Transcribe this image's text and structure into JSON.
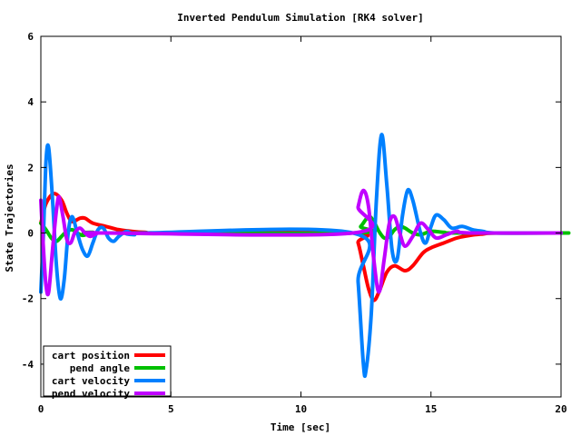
{
  "chart_data": {
    "type": "line",
    "title": "Inverted Pendulum Simulation [RK4 solver]",
    "xlabel": "Time [sec]",
    "ylabel": "State Trajectories",
    "xlim": [
      0,
      20
    ],
    "ylim": [
      -5,
      6
    ],
    "xticks": [
      0,
      5,
      10,
      15,
      20
    ],
    "yticks": [
      -4,
      -2,
      0,
      2,
      4,
      6
    ],
    "grid": false,
    "legend_position": "bottom-left",
    "series": [
      {
        "name": "cart position",
        "color": "#ff0000",
        "points": [
          [
            0,
            0.3
          ],
          [
            0.2,
            0.9
          ],
          [
            0.5,
            1.2
          ],
          [
            0.8,
            1.0
          ],
          [
            1.0,
            0.6
          ],
          [
            1.2,
            0.35
          ],
          [
            1.5,
            0.45
          ],
          [
            1.7,
            0.45
          ],
          [
            2.0,
            0.3
          ],
          [
            2.5,
            0.2
          ],
          [
            3.0,
            0.1
          ],
          [
            3.5,
            0.05
          ],
          [
            4.0,
            0.02
          ],
          [
            5,
            0
          ],
          [
            12.0,
            0
          ],
          [
            12.2,
            -0.3
          ],
          [
            12.4,
            -1.0
          ],
          [
            12.6,
            -1.7
          ],
          [
            12.8,
            -2.05
          ],
          [
            13.0,
            -1.8
          ],
          [
            13.3,
            -1.2
          ],
          [
            13.6,
            -1.0
          ],
          [
            14.0,
            -1.15
          ],
          [
            14.3,
            -1.0
          ],
          [
            14.7,
            -0.6
          ],
          [
            15.0,
            -0.45
          ],
          [
            15.5,
            -0.3
          ],
          [
            16.0,
            -0.15
          ],
          [
            16.5,
            -0.07
          ],
          [
            17.0,
            -0.03
          ],
          [
            17.5,
            0
          ],
          [
            20,
            0
          ]
        ]
      },
      {
        "name": "pend angle",
        "color": "#00c000",
        "points": [
          [
            0,
            0.3
          ],
          [
            0.2,
            0.1
          ],
          [
            0.4,
            -0.15
          ],
          [
            0.6,
            -0.25
          ],
          [
            0.8,
            -0.1
          ],
          [
            1.0,
            0.05
          ],
          [
            1.2,
            0.1
          ],
          [
            1.4,
            0.0
          ],
          [
            1.6,
            -0.07
          ],
          [
            1.8,
            -0.03
          ],
          [
            2.0,
            0.02
          ],
          [
            2.5,
            0
          ],
          [
            20.0,
            0
          ],
          [
            12.0,
            0
          ],
          [
            12.3,
            0.2
          ],
          [
            12.6,
            0.5
          ],
          [
            12.8,
            0.35
          ],
          [
            13.0,
            0.05
          ],
          [
            13.2,
            -0.15
          ],
          [
            13.4,
            -0.1
          ],
          [
            13.6,
            0.1
          ],
          [
            13.8,
            0.2
          ],
          [
            14.0,
            0.15
          ],
          [
            14.3,
            0
          ],
          [
            14.6,
            -0.05
          ],
          [
            15.0,
            0.05
          ],
          [
            15.5,
            0.02
          ],
          [
            16.0,
            0
          ],
          [
            20,
            0
          ]
        ]
      },
      {
        "name": "cart velocity",
        "color": "#0080ff",
        "points": [
          [
            0,
            -1.8
          ],
          [
            0.1,
            0.0
          ],
          [
            0.2,
            2.2
          ],
          [
            0.3,
            2.6
          ],
          [
            0.45,
            1.0
          ],
          [
            0.6,
            -1.0
          ],
          [
            0.75,
            -2.0
          ],
          [
            0.9,
            -1.4
          ],
          [
            1.05,
            0.0
          ],
          [
            1.2,
            0.5
          ],
          [
            1.4,
            0.0
          ],
          [
            1.6,
            -0.5
          ],
          [
            1.8,
            -0.7
          ],
          [
            2.0,
            -0.3
          ],
          [
            2.2,
            0.1
          ],
          [
            2.4,
            0.15
          ],
          [
            2.6,
            -0.15
          ],
          [
            2.8,
            -0.25
          ],
          [
            3.0,
            -0.1
          ],
          [
            3.3,
            0.05
          ],
          [
            3.6,
            -0.05
          ],
          [
            4.0,
            0
          ],
          [
            12.0,
            0
          ],
          [
            12.2,
            -1.5
          ],
          [
            12.4,
            -4.0
          ],
          [
            12.5,
            -4.2
          ],
          [
            12.7,
            -2.5
          ],
          [
            12.9,
            1.0
          ],
          [
            13.1,
            3.0
          ],
          [
            13.3,
            1.5
          ],
          [
            13.5,
            -0.5
          ],
          [
            13.7,
            -0.8
          ],
          [
            13.9,
            0.5
          ],
          [
            14.1,
            1.3
          ],
          [
            14.3,
            1.0
          ],
          [
            14.6,
            0.0
          ],
          [
            14.8,
            -0.3
          ],
          [
            15.0,
            0.2
          ],
          [
            15.2,
            0.55
          ],
          [
            15.5,
            0.4
          ],
          [
            15.8,
            0.15
          ],
          [
            16.2,
            0.2
          ],
          [
            16.6,
            0.1
          ],
          [
            17.0,
            0.05
          ],
          [
            17.5,
            0
          ],
          [
            20,
            0
          ]
        ]
      },
      {
        "name": "pend velocity",
        "color": "#c000ff",
        "points": [
          [
            0,
            1.0
          ],
          [
            0.1,
            -0.5
          ],
          [
            0.2,
            -1.6
          ],
          [
            0.3,
            -1.8
          ],
          [
            0.45,
            -0.5
          ],
          [
            0.6,
            0.7
          ],
          [
            0.7,
            1.1
          ],
          [
            0.85,
            0.5
          ],
          [
            1.0,
            -0.2
          ],
          [
            1.15,
            -0.3
          ],
          [
            1.3,
            0.0
          ],
          [
            1.5,
            0.15
          ],
          [
            1.7,
            0.0
          ],
          [
            1.9,
            -0.1
          ],
          [
            2.2,
            0.0
          ],
          [
            2.5,
            0
          ],
          [
            12.0,
            0
          ],
          [
            12.2,
            0.8
          ],
          [
            12.4,
            1.3
          ],
          [
            12.6,
            0.8
          ],
          [
            12.8,
            -0.8
          ],
          [
            13.0,
            -1.8
          ],
          [
            13.2,
            -0.8
          ],
          [
            13.4,
            0.3
          ],
          [
            13.6,
            0.5
          ],
          [
            13.8,
            0.0
          ],
          [
            14.0,
            -0.4
          ],
          [
            14.3,
            -0.1
          ],
          [
            14.6,
            0.3
          ],
          [
            14.9,
            0.1
          ],
          [
            15.2,
            -0.15
          ],
          [
            15.6,
            -0.05
          ],
          [
            16.0,
            0.05
          ],
          [
            16.5,
            0
          ],
          [
            20,
            0
          ]
        ]
      }
    ]
  }
}
